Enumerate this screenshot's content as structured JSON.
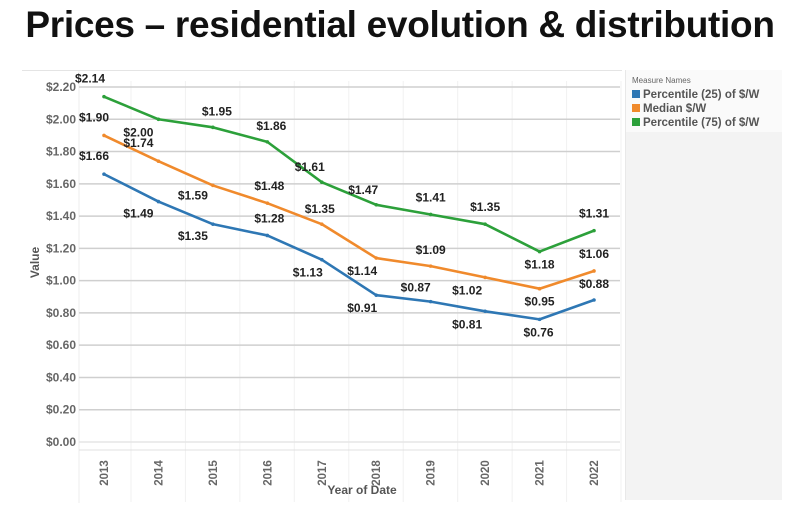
{
  "page": {
    "title": "Prices – residential evolution & distribution"
  },
  "legend": {
    "title": "Measure Names",
    "items": [
      {
        "label": "Percentile (25) of $/W",
        "color": "#2e77b4"
      },
      {
        "label": "Median $/W",
        "color": "#f08a2c"
      },
      {
        "label": "Percentile (75) of $/W",
        "color": "#2ca03a"
      }
    ]
  },
  "chart_data": {
    "type": "line",
    "title": "Prices – residential evolution & distribution",
    "xlabel": "Year of Date",
    "ylabel": "Value",
    "x": [
      "2013",
      "2014",
      "2015",
      "2016",
      "2017",
      "2018",
      "2019",
      "2020",
      "2021",
      "2022"
    ],
    "ylim": [
      0,
      2.2
    ],
    "yticks": [
      "$0.00",
      "$0.20",
      "$0.40",
      "$0.60",
      "$0.80",
      "$1.00",
      "$1.20",
      "$1.40",
      "$1.60",
      "$1.80",
      "$2.00",
      "$2.20"
    ],
    "grid": true,
    "legend_position": "right",
    "series": [
      {
        "name": "Percentile (25) of $/W",
        "color": "#2e77b4",
        "values": [
          1.66,
          1.49,
          1.35,
          1.28,
          1.13,
          0.91,
          0.87,
          0.81,
          0.76,
          0.88
        ],
        "labels": [
          "$1.66",
          "$1.49",
          "$1.35",
          "$1.28",
          "$1.13",
          "$0.91",
          "$0.87",
          "$0.81",
          "$0.76",
          "$0.88"
        ]
      },
      {
        "name": "Median $/W",
        "color": "#f08a2c",
        "values": [
          1.9,
          1.74,
          1.59,
          1.48,
          1.35,
          1.14,
          1.09,
          1.02,
          0.95,
          1.06
        ],
        "labels": [
          "$1.90",
          "$1.74",
          "$1.59",
          "$1.48",
          "$1.35",
          "$1.14",
          "$1.09",
          "$1.02",
          "$0.95",
          "$1.06"
        ]
      },
      {
        "name": "Percentile (75) of $/W",
        "color": "#2ca03a",
        "values": [
          2.14,
          2.0,
          1.95,
          1.86,
          1.61,
          1.47,
          1.41,
          1.35,
          1.18,
          1.31
        ],
        "labels": [
          "$2.14",
          "$2.00",
          "$1.95",
          "$1.86",
          "$1.61",
          "$1.47",
          "$1.41",
          "$1.35",
          "$1.18",
          "$1.31"
        ]
      }
    ]
  }
}
